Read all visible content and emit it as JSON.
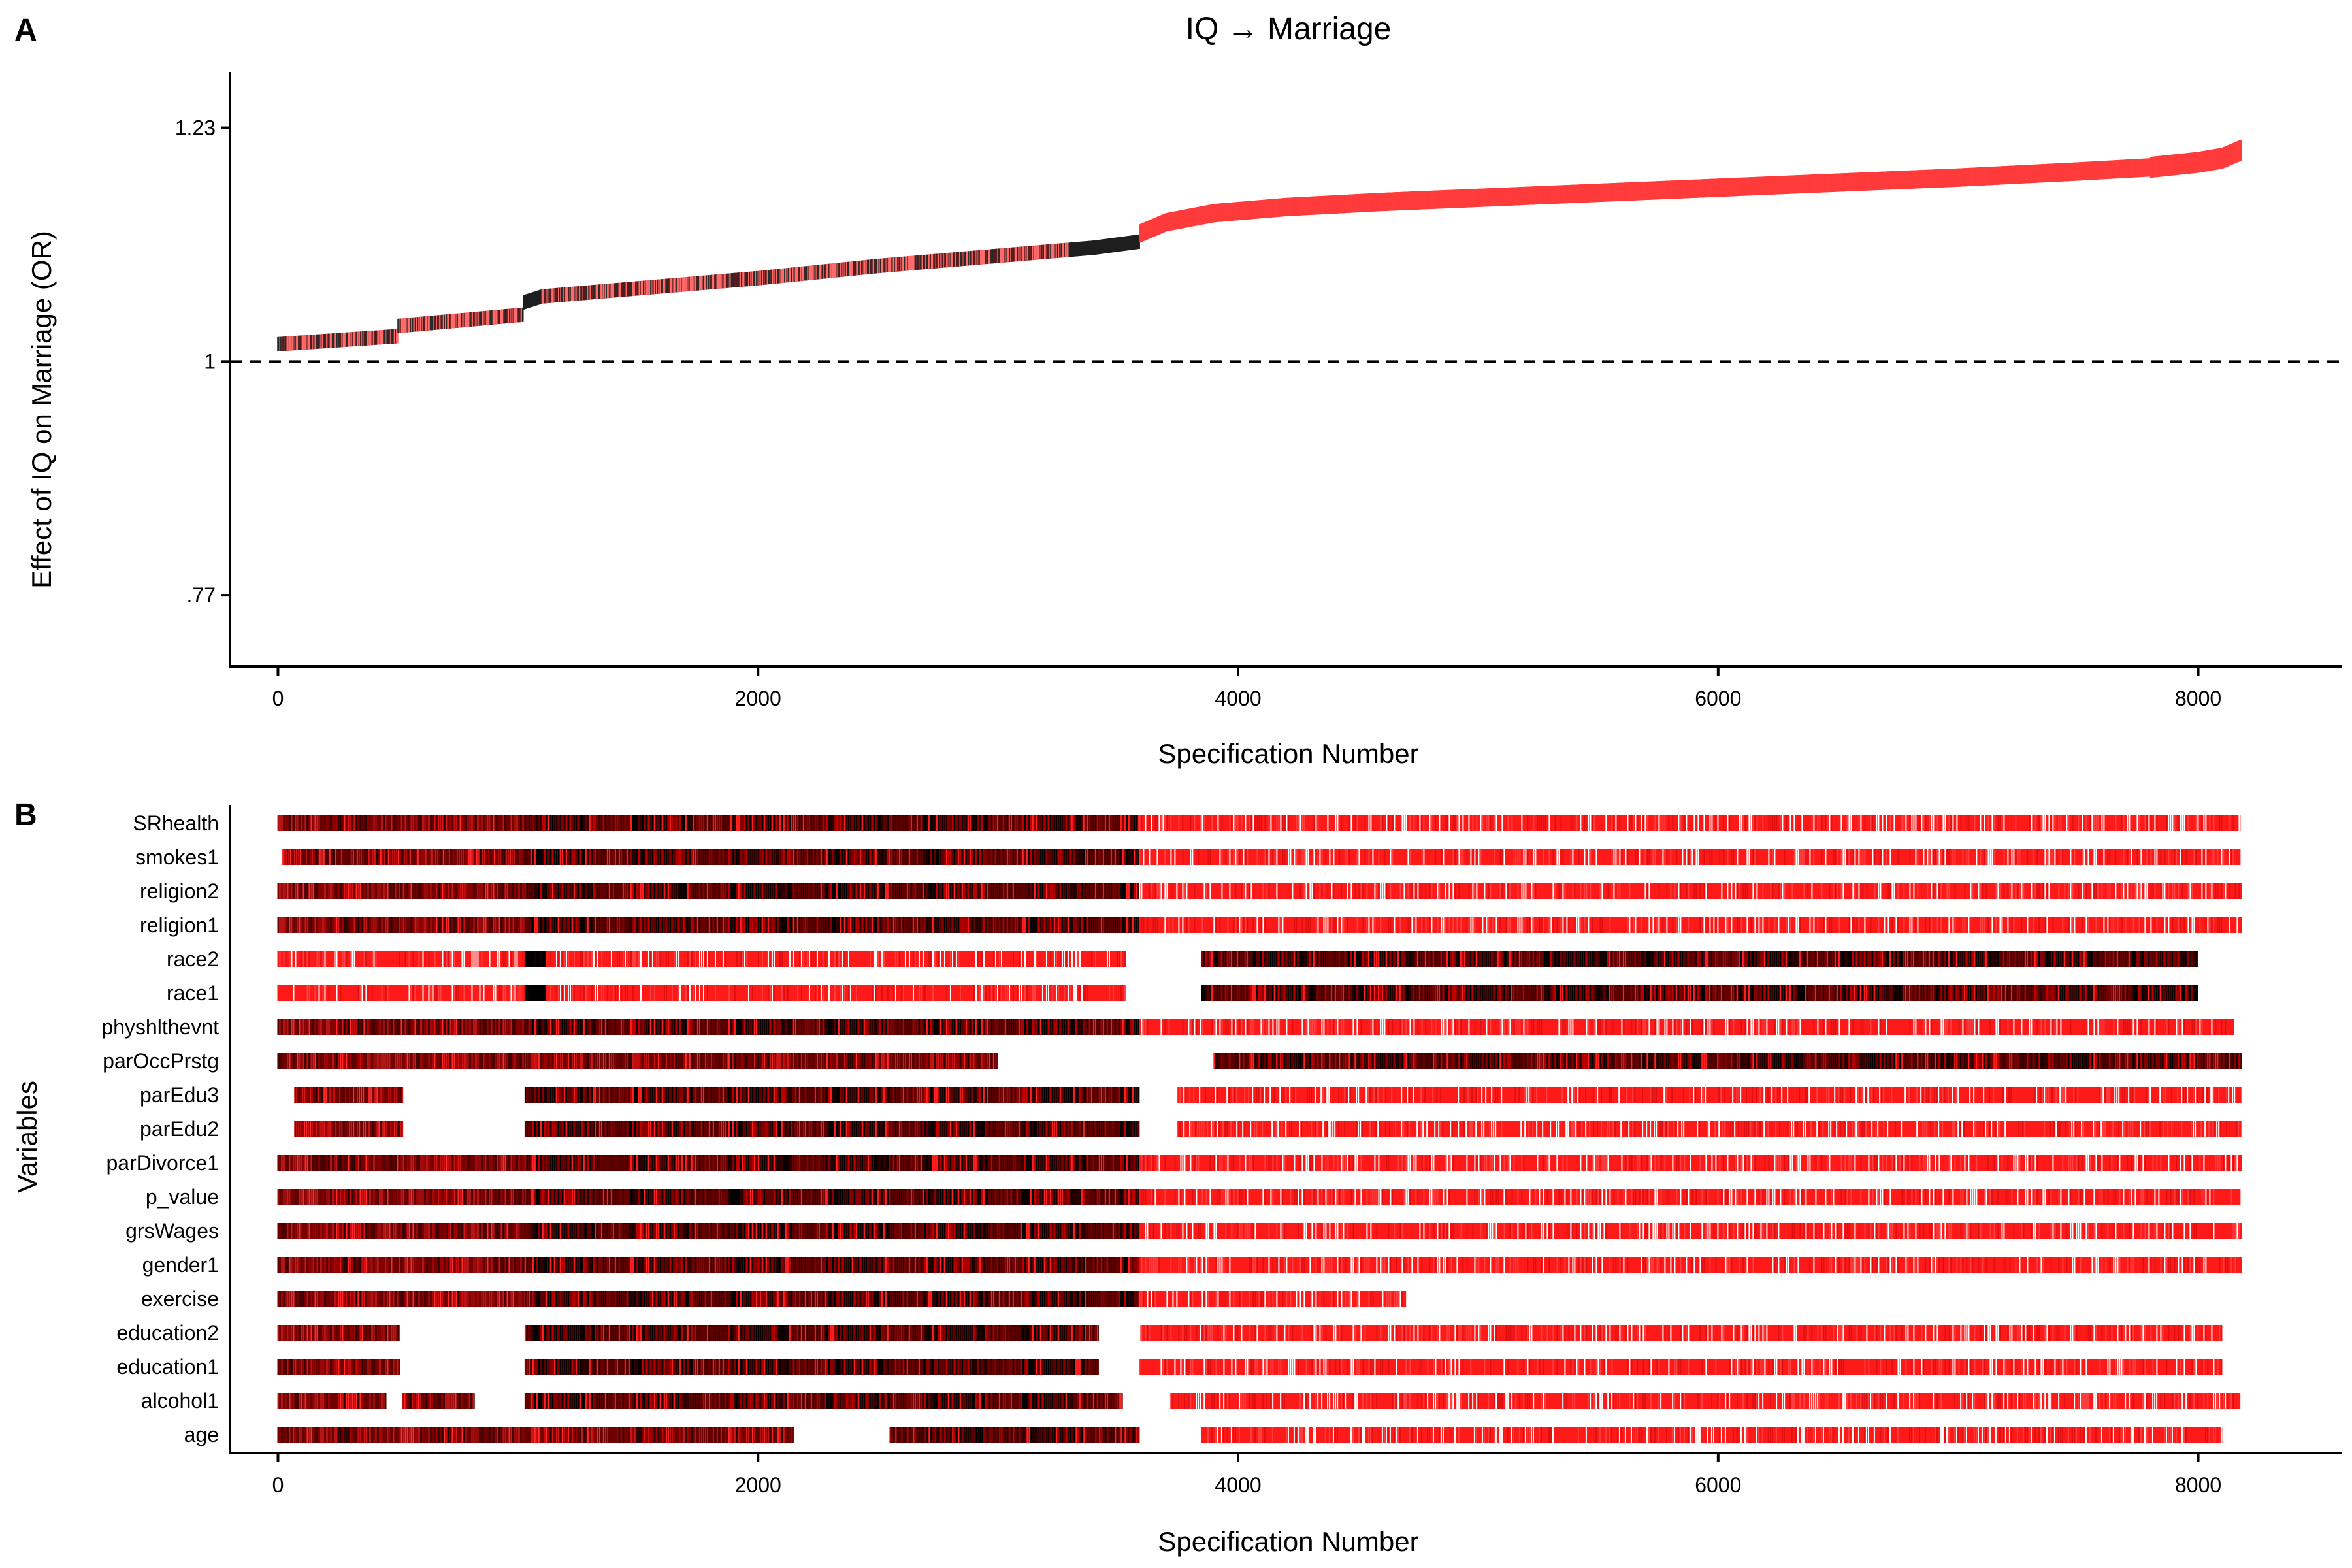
{
  "panel_a_letter": "A",
  "panel_b_letter": "B",
  "colors": {
    "significant": "#ff3b3b",
    "nonsignificant": "#1e1e1e",
    "ci_band": "#ff6a6a",
    "axis": "#000000"
  },
  "chart_data": [
    {
      "type": "line",
      "panel": "A",
      "title": "IQ → Marriage",
      "xlabel": "Specification Number",
      "ylabel": "Effect of IQ on Marriage (OR)",
      "xlim": [
        -200,
        8600
      ],
      "xticks": [
        0,
        2000,
        4000,
        6000,
        8000
      ],
      "xtick_labels": [
        "0",
        "2000",
        "4000",
        "6000",
        "8000"
      ],
      "ylim": [
        0.7,
        1.285
      ],
      "yticks": [
        0.77,
        1.0,
        1.23
      ],
      "ytick_labels": [
        ".77",
        "1",
        "1.23"
      ],
      "reference_line": {
        "y": 1.0,
        "style": "dashed"
      },
      "grid": false,
      "series": [
        {
          "x": [
            0,
            500,
            501,
            1020,
            1021,
            1100,
            1500,
            2000,
            2500,
            3000,
            3400,
            3590,
            3591,
            3700,
            3900,
            4200,
            4600,
            5000,
            5500,
            6000,
            6500,
            7000,
            7500,
            7800,
            8000,
            8100,
            8180
          ],
          "y": [
            1.017,
            1.025,
            1.035,
            1.046,
            1.058,
            1.064,
            1.072,
            1.082,
            1.094,
            1.104,
            1.112,
            1.118,
            1.126,
            1.137,
            1.146,
            1.152,
            1.157,
            1.161,
            1.166,
            1.171,
            1.176,
            1.181,
            1.187,
            1.191,
            1.196,
            1.2,
            1.208
          ],
          "significance": [
            {
              "from": 0,
              "to": 1020,
              "status": "mixed"
            },
            {
              "from": 1020,
              "to": 1100,
              "status": "nonsignificant"
            },
            {
              "from": 1100,
              "to": 3300,
              "status": "mixed"
            },
            {
              "from": 3300,
              "to": 3590,
              "status": "nonsignificant"
            },
            {
              "from": 3590,
              "to": 8180,
              "status": "significant"
            }
          ]
        }
      ]
    },
    {
      "type": "heatmap",
      "panel": "B",
      "xlabel": "Specification Number",
      "ylabel": "Variables",
      "xlim": [
        -200,
        8600
      ],
      "xticks": [
        0,
        2000,
        4000,
        6000,
        8000
      ],
      "xtick_labels": [
        "0",
        "2000",
        "4000",
        "6000",
        "8000"
      ],
      "rows": [
        {
          "name": "SRhealth",
          "segments": [
            [
              0,
              1030,
              "mixed"
            ],
            [
              1030,
              3590,
              "dark"
            ],
            [
              3590,
              8180,
              "red"
            ]
          ]
        },
        {
          "name": "smokes1",
          "segments": [
            [
              20,
              1030,
              "mixed"
            ],
            [
              1030,
              3590,
              "dark"
            ],
            [
              3590,
              8180,
              "red"
            ]
          ]
        },
        {
          "name": "religion2",
          "segments": [
            [
              0,
              1030,
              "mixed"
            ],
            [
              1030,
              3590,
              "dark"
            ],
            [
              3590,
              8180,
              "red"
            ]
          ]
        },
        {
          "name": "religion1",
          "segments": [
            [
              0,
              1030,
              "mixed"
            ],
            [
              1030,
              3590,
              "dark"
            ],
            [
              3590,
              8180,
              "red"
            ]
          ]
        },
        {
          "name": "race2",
          "segments": [
            [
              0,
              1030,
              "red"
            ],
            [
              1030,
              1120,
              "black"
            ],
            [
              1120,
              3530,
              "red"
            ],
            [
              3850,
              8000,
              "dark"
            ]
          ]
        },
        {
          "name": "race1",
          "segments": [
            [
              0,
              1030,
              "red"
            ],
            [
              1030,
              1120,
              "black"
            ],
            [
              1120,
              3530,
              "red"
            ],
            [
              3850,
              8000,
              "dark"
            ]
          ]
        },
        {
          "name": "physhlthevnt",
          "segments": [
            [
              0,
              1030,
              "mixed"
            ],
            [
              1030,
              3590,
              "dark"
            ],
            [
              3590,
              8150,
              "red"
            ]
          ]
        },
        {
          "name": "parOccPrstg",
          "segments": [
            [
              0,
              1030,
              "mixed"
            ],
            [
              1030,
              3000,
              "mixed"
            ],
            [
              3900,
              8180,
              "dark"
            ]
          ]
        },
        {
          "name": "parEdu3",
          "segments": [
            [
              70,
              520,
              "mixed"
            ],
            [
              1030,
              3590,
              "dark"
            ],
            [
              3750,
              8180,
              "red"
            ]
          ]
        },
        {
          "name": "parEdu2",
          "segments": [
            [
              70,
              520,
              "mixed"
            ],
            [
              1030,
              3590,
              "dark"
            ],
            [
              3750,
              8180,
              "red"
            ]
          ]
        },
        {
          "name": "parDivorce1",
          "segments": [
            [
              0,
              1030,
              "mixed"
            ],
            [
              1030,
              3590,
              "dark"
            ],
            [
              3590,
              8180,
              "red"
            ]
          ]
        },
        {
          "name": "p_value",
          "segments": [
            [
              0,
              1030,
              "mixed"
            ],
            [
              1030,
              3590,
              "dark"
            ],
            [
              3590,
              8180,
              "red"
            ]
          ]
        },
        {
          "name": "grsWages",
          "segments": [
            [
              0,
              1030,
              "mixed"
            ],
            [
              1030,
              3590,
              "dark"
            ],
            [
              3590,
              8180,
              "red"
            ]
          ]
        },
        {
          "name": "gender1",
          "segments": [
            [
              0,
              1030,
              "mixed"
            ],
            [
              1030,
              3590,
              "dark"
            ],
            [
              3590,
              8180,
              "red"
            ]
          ]
        },
        {
          "name": "exercise",
          "segments": [
            [
              0,
              1030,
              "mixed"
            ],
            [
              1030,
              3590,
              "dark"
            ],
            [
              3590,
              4700,
              "red"
            ]
          ]
        },
        {
          "name": "education2",
          "segments": [
            [
              0,
              510,
              "mixed"
            ],
            [
              1030,
              3420,
              "dark"
            ],
            [
              3590,
              8100,
              "red"
            ]
          ]
        },
        {
          "name": "education1",
          "segments": [
            [
              0,
              510,
              "mixed"
            ],
            [
              1030,
              3420,
              "dark"
            ],
            [
              3590,
              8100,
              "red"
            ]
          ]
        },
        {
          "name": "alcohol1",
          "segments": [
            [
              0,
              450,
              "mixed"
            ],
            [
              520,
              820,
              "mixed"
            ],
            [
              1030,
              3520,
              "dark"
            ],
            [
              3720,
              8180,
              "red"
            ]
          ]
        },
        {
          "name": "age",
          "segments": [
            [
              0,
              1030,
              "mixed"
            ],
            [
              1030,
              2150,
              "mixed"
            ],
            [
              2550,
              3590,
              "dark"
            ],
            [
              3850,
              8100,
              "red"
            ]
          ]
        }
      ]
    }
  ]
}
